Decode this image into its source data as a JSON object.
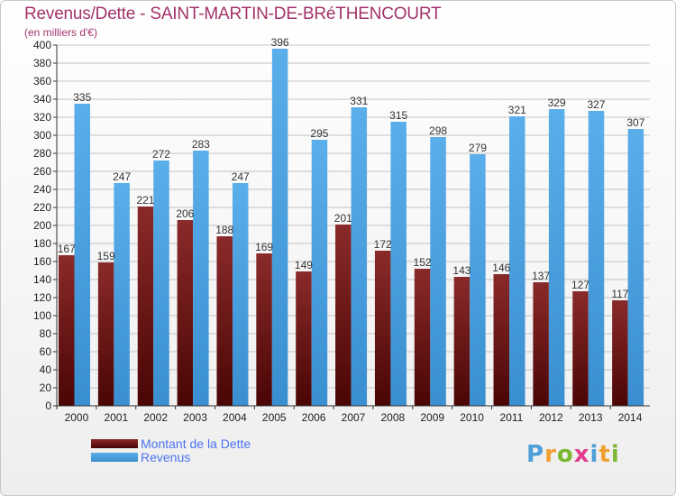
{
  "title": "Revenus/Dette - SAINT-MARTIN-DE-BRéTHENCOURT",
  "subtitle": "(en milliers d'€)",
  "logo": {
    "text": "Proxiti",
    "letter_colors": [
      "#4f9fd8",
      "#f0a030",
      "#7cb82f",
      "#e23d8c",
      "#4f9fd8",
      "#f0a030",
      "#7cb82f"
    ]
  },
  "colors": {
    "dette": "#7a1a1a",
    "revenus": "#4ea5e6",
    "title": "#a2336a",
    "legend_text": "#4d74f0",
    "label_text": "#333333"
  },
  "chart_data": {
    "type": "bar",
    "categories": [
      "2000",
      "2001",
      "2002",
      "2003",
      "2004",
      "2005",
      "2006",
      "2007",
      "2008",
      "2009",
      "2010",
      "2011",
      "2012",
      "2013",
      "2014"
    ],
    "series": [
      {
        "name": "Montant de la Dette",
        "values": [
          167,
          159,
          221,
          206,
          188,
          169,
          149,
          201,
          172,
          152,
          143,
          146,
          137,
          127,
          117
        ]
      },
      {
        "name": "Revenus",
        "values": [
          335,
          247,
          272,
          283,
          247,
          396,
          295,
          331,
          315,
          298,
          279,
          321,
          329,
          327,
          307
        ]
      }
    ],
    "ylim": [
      0,
      400
    ],
    "yticks": [
      0,
      20,
      40,
      60,
      80,
      100,
      120,
      140,
      160,
      180,
      200,
      220,
      240,
      260,
      280,
      300,
      320,
      340,
      360,
      380,
      400
    ],
    "grid": true,
    "legend_position": "bottom-left"
  }
}
